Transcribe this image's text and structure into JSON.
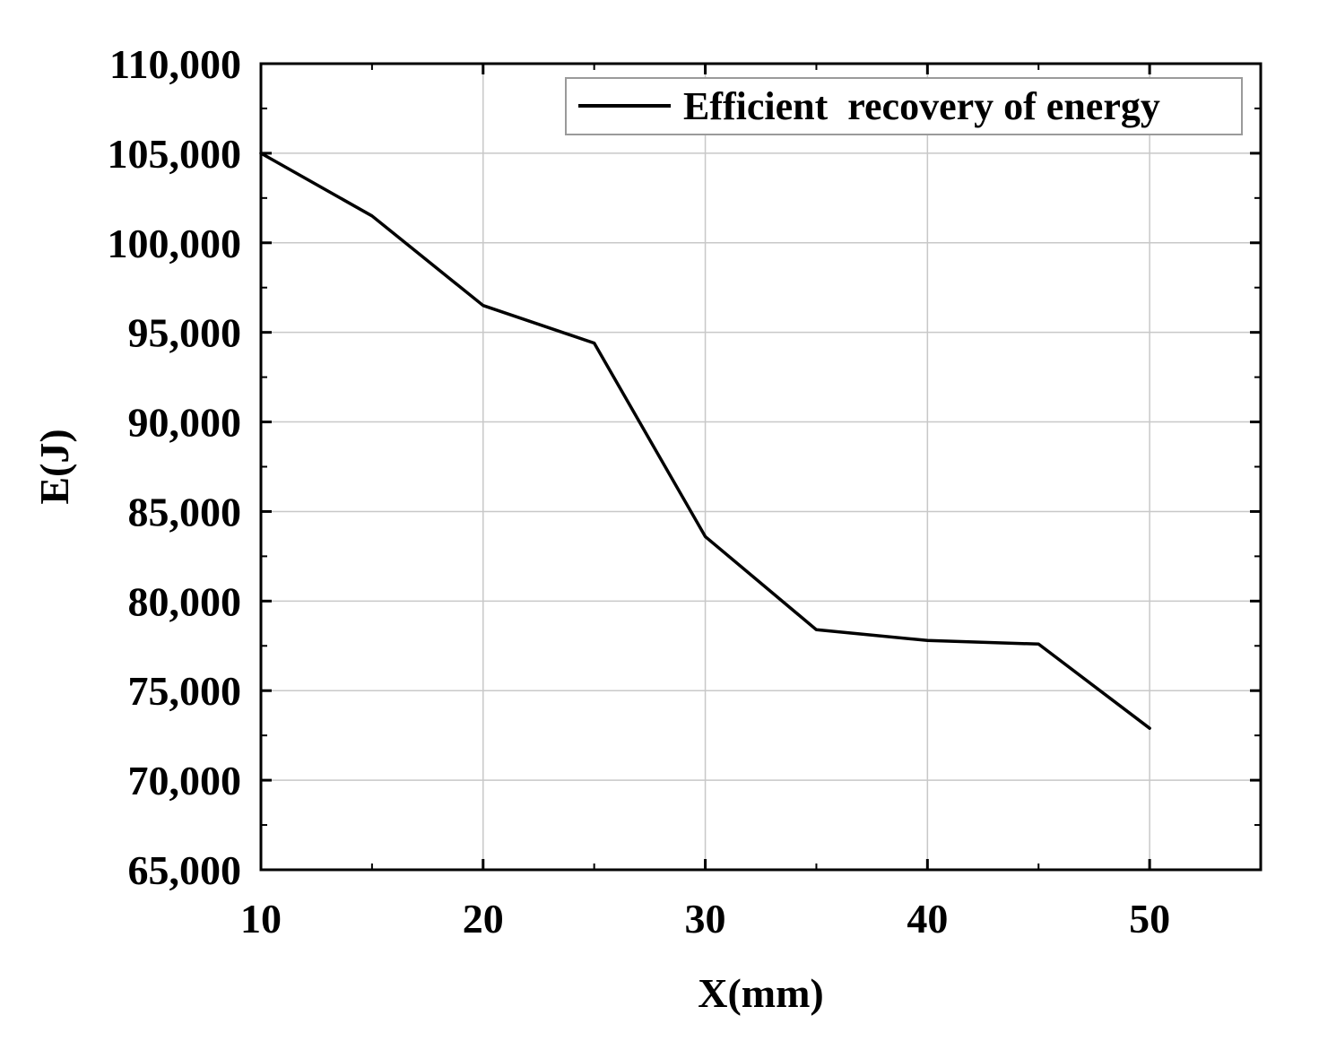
{
  "chart_data": {
    "type": "line",
    "title": "",
    "xlabel": "X(mm)",
    "ylabel": "E(J)",
    "xlim": [
      10,
      55
    ],
    "ylim": [
      65000,
      110000
    ],
    "x_ticks": [
      10,
      20,
      30,
      40,
      50
    ],
    "x_tick_labels": [
      "10",
      "20",
      "30",
      "40",
      "50"
    ],
    "y_ticks": [
      65000,
      70000,
      75000,
      80000,
      85000,
      90000,
      95000,
      100000,
      105000,
      110000
    ],
    "y_tick_labels": [
      "65,000",
      "70,000",
      "75,000",
      "80,000",
      "85,000",
      "90,000",
      "95,000",
      "100,000",
      "105,000",
      "110,000"
    ],
    "grid": true,
    "legend_position": "top-right",
    "series": [
      {
        "name": "Efficient  recovery of energy",
        "color": "#000000",
        "x": [
          10,
          15,
          20,
          25,
          30,
          35,
          40,
          45,
          50
        ],
        "y": [
          105000,
          101500,
          96500,
          94400,
          83600,
          78400,
          77800,
          77600,
          72900
        ]
      }
    ]
  }
}
